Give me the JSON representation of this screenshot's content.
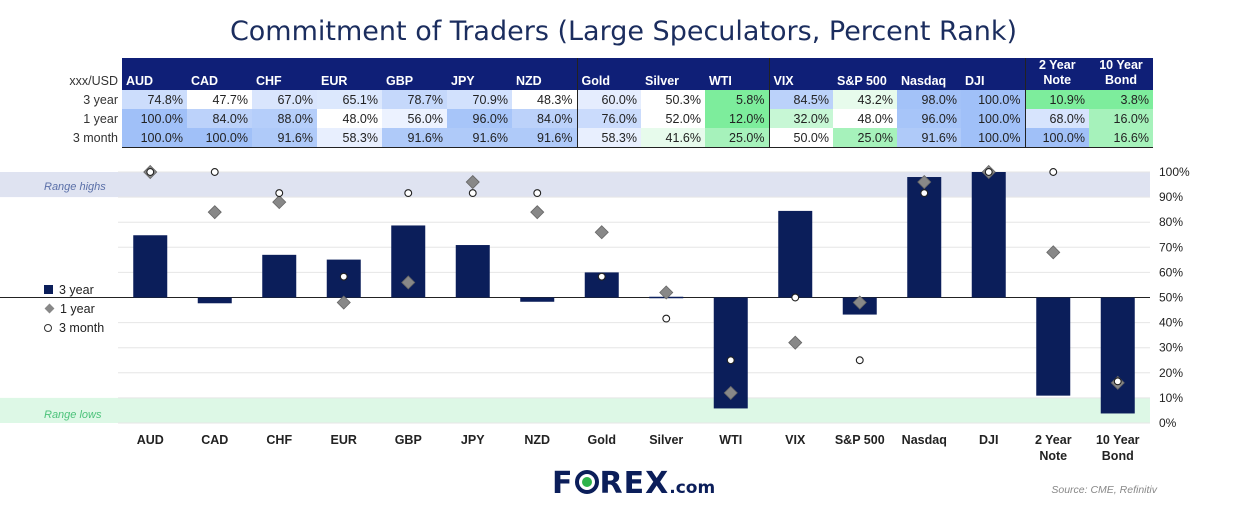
{
  "title": "Commitment of Traders (Large Speculators, Percent Rank)",
  "table": {
    "corner_label": "xxx/USD",
    "headers": [
      {
        "l1": "",
        "l2": "AUD"
      },
      {
        "l1": "",
        "l2": "CAD"
      },
      {
        "l1": "",
        "l2": "CHF"
      },
      {
        "l1": "",
        "l2": "EUR"
      },
      {
        "l1": "",
        "l2": "GBP"
      },
      {
        "l1": "",
        "l2": "JPY"
      },
      {
        "l1": "",
        "l2": "NZD"
      },
      {
        "l1": "",
        "l2": "Gold"
      },
      {
        "l1": "",
        "l2": "Silver"
      },
      {
        "l1": "",
        "l2": "WTI"
      },
      {
        "l1": "",
        "l2": "VIX"
      },
      {
        "l1": "",
        "l2": "S&P 500"
      },
      {
        "l1": "",
        "l2": "Nasdaq"
      },
      {
        "l1": "",
        "l2": "DJI"
      },
      {
        "l1": "2 Year",
        "l2": "Note"
      },
      {
        "l1": "10 Year",
        "l2": "Bond"
      }
    ],
    "rows": [
      {
        "label": "3 year",
        "values": [
          "74.8%",
          "47.7%",
          "67.0%",
          "65.1%",
          "78.7%",
          "70.9%",
          "48.3%",
          "60.0%",
          "50.3%",
          "5.8%",
          "84.5%",
          "43.2%",
          "98.0%",
          "100.0%",
          "10.9%",
          "3.8%"
        ]
      },
      {
        "label": "1 year",
        "values": [
          "100.0%",
          "84.0%",
          "88.0%",
          "48.0%",
          "56.0%",
          "96.0%",
          "84.0%",
          "76.0%",
          "52.0%",
          "12.0%",
          "32.0%",
          "48.0%",
          "96.0%",
          "100.0%",
          "68.0%",
          "16.0%"
        ]
      },
      {
        "label": "3 month",
        "values": [
          "100.0%",
          "100.0%",
          "91.6%",
          "58.3%",
          "91.6%",
          "91.6%",
          "91.6%",
          "58.3%",
          "41.6%",
          "25.0%",
          "50.0%",
          "25.0%",
          "91.6%",
          "100.0%",
          "100.0%",
          "16.6%"
        ]
      }
    ]
  },
  "chart_data": {
    "type": "bar",
    "baseline": 50,
    "ylim": [
      0,
      100
    ],
    "yticks": [
      0,
      10,
      20,
      30,
      40,
      50,
      60,
      70,
      80,
      90,
      100
    ],
    "ytick_labels": [
      "0%",
      "10%",
      "20%",
      "30%",
      "40%",
      "50%",
      "60%",
      "70%",
      "80%",
      "90%",
      "100%"
    ],
    "categories": [
      "AUD",
      "CAD",
      "CHF",
      "EUR",
      "GBP",
      "JPY",
      "NZD",
      "Gold",
      "Silver",
      "WTI",
      "VIX",
      "S&P 500",
      "Nasdaq",
      "DJI",
      "2 Year Note",
      "10 Year Bond"
    ],
    "category_lines": [
      [
        "AUD"
      ],
      [
        "CAD"
      ],
      [
        "CHF"
      ],
      [
        "EUR"
      ],
      [
        "GBP"
      ],
      [
        "JPY"
      ],
      [
        "NZD"
      ],
      [
        "Gold"
      ],
      [
        "Silver"
      ],
      [
        "WTI"
      ],
      [
        "VIX"
      ],
      [
        "S&P 500"
      ],
      [
        "Nasdaq"
      ],
      [
        "DJI"
      ],
      [
        "2 Year",
        "Note"
      ],
      [
        "10 Year",
        "Bond"
      ]
    ],
    "series": [
      {
        "name": "3 year",
        "marker": "bar",
        "values": [
          74.8,
          47.7,
          67.0,
          65.1,
          78.7,
          70.9,
          48.3,
          60.0,
          50.3,
          5.8,
          84.5,
          43.2,
          98.0,
          100.0,
          10.9,
          3.8
        ]
      },
      {
        "name": "1 year",
        "marker": "diamond",
        "values": [
          100.0,
          84.0,
          88.0,
          48.0,
          56.0,
          96.0,
          84.0,
          76.0,
          52.0,
          12.0,
          32.0,
          48.0,
          96.0,
          100.0,
          68.0,
          16.0
        ]
      },
      {
        "name": "3 month",
        "marker": "circle",
        "values": [
          100.0,
          100.0,
          91.6,
          58.3,
          91.6,
          91.6,
          91.6,
          58.3,
          41.6,
          25.0,
          50.0,
          25.0,
          91.6,
          100.0,
          100.0,
          16.6
        ]
      }
    ],
    "bands": [
      {
        "label": "Range highs",
        "from": 90,
        "to": 100,
        "color": "#dfe3f1",
        "label_color": "#5a6fa8"
      },
      {
        "label": "Range lows",
        "from": 0,
        "to": 10,
        "color": "#ddf8e6",
        "label_color": "#4cc27a"
      }
    ],
    "legend": [
      "3 year",
      "1 year",
      "3 month"
    ]
  },
  "logo": {
    "brand": "FOREX",
    "suffix": ".com"
  },
  "source": "Source: CME, Refinitiv",
  "colors": {
    "bar": "#0b1e5a",
    "header": "#0f1f77",
    "diamond": "#888888"
  }
}
